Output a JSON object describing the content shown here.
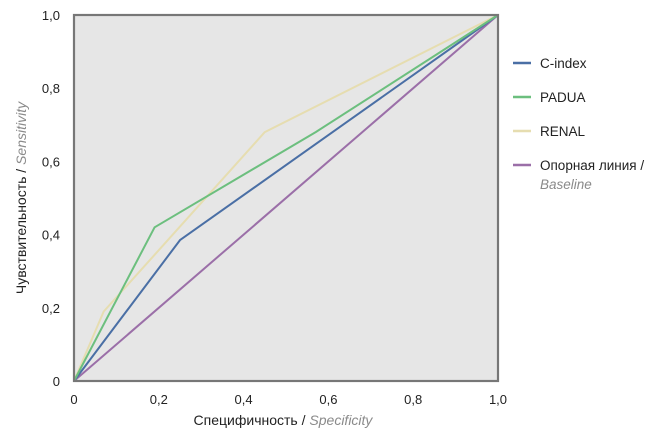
{
  "chart_data": {
    "type": "line",
    "xlabel": "Специфичность",
    "xlabel_en": "Specificity",
    "ylabel": "Чувствительность",
    "ylabel_en": "Sensitivity",
    "axis_separator": " / ",
    "xlim": [
      0,
      1
    ],
    "ylim": [
      0,
      1
    ],
    "x_ticks": [
      "0",
      "0,2",
      "0,4",
      "0,6",
      "0,8",
      "1,0"
    ],
    "y_ticks": [
      "0",
      "0,2",
      "0,4",
      "0,6",
      "0,8",
      "1,0"
    ],
    "tick_values": [
      0,
      0.2,
      0.4,
      0.6,
      0.8,
      1.0
    ],
    "grid": false,
    "legend_position": "right",
    "background": "#e6e6e6",
    "series": [
      {
        "name": "C-index",
        "color": "#4a6fa5",
        "x": [
          0,
          0.25,
          1
        ],
        "y": [
          0,
          0.385,
          1
        ]
      },
      {
        "name": "PADUA",
        "color": "#6cbf7e",
        "x": [
          0,
          0.19,
          0.57,
          1
        ],
        "y": [
          0,
          0.42,
          0.68,
          1
        ]
      },
      {
        "name": "RENAL",
        "color": "#e6ddb0",
        "x": [
          0,
          0.07,
          0.45,
          1
        ],
        "y": [
          0,
          0.19,
          0.68,
          1
        ]
      },
      {
        "name": "Опорная линия /",
        "name_en": "Baseline",
        "color": "#9b6fa8",
        "x": [
          0,
          1
        ],
        "y": [
          0,
          1
        ]
      }
    ]
  }
}
